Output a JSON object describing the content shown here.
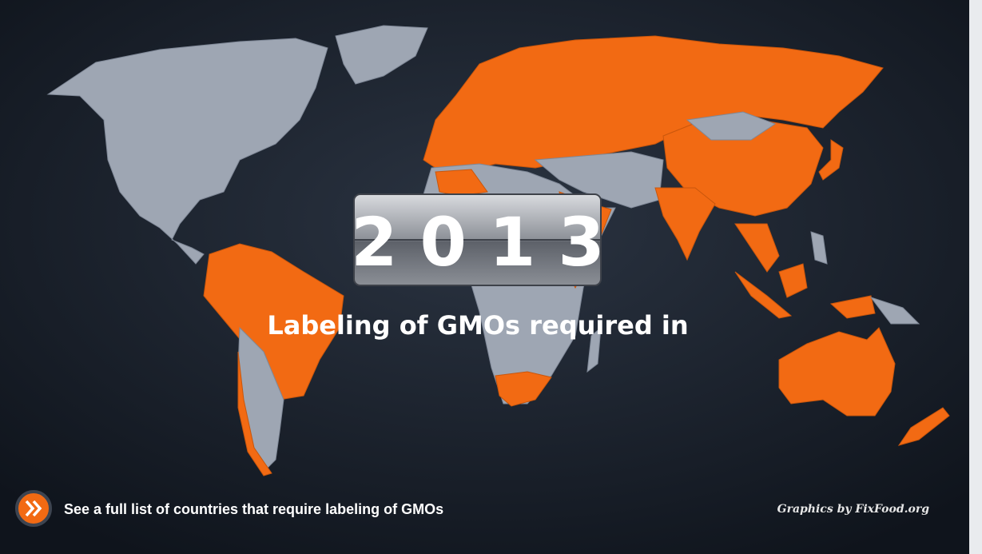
{
  "year": "2013",
  "caption": "Labeling of GMOs required in",
  "link": {
    "label": "See a full list of countries that require labeling of GMOs"
  },
  "credit": "Graphics by FixFood.org"
}
